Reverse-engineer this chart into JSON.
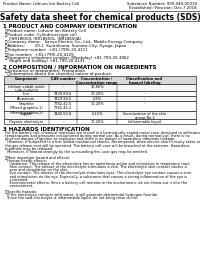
{
  "title": "Safety data sheet for chemical products (SDS)",
  "header_left": "Product Name: Lithium Ion Battery Cell",
  "header_right_line1": "Substance Number: 999-049-00010",
  "header_right_line2": "Established / Revision: Dec.7.2018",
  "section1_title": "1 PRODUCT AND COMPANY IDENTIFICATION",
  "section1_lines": [
    "・Product name: Lithium Ion Battery Cell",
    "・Product code: Cylindrical-type cell",
    "   (INR18650J, INR18650L, INR18650A)",
    "・Company name:   Sanyo Electric Co., Ltd., Mobile Energy Company",
    "・Address:        20-1  Kurankuma, Sumoto-City, Hyogo, Japan",
    "・Telephone number:  +81-(799)-20-4111",
    "・Fax number:  +81-(799)-20-4129",
    "・Emergency telephone number (Weekday) +81-799-20-3962",
    "   (Night and holiday) +81-799-20-4131"
  ],
  "section2_title": "2 COMPOSITION / INFORMATION ON INGREDIENTS",
  "section2_intro": "・Substance or preparation: Preparation",
  "section2_sub": "  ・Information about the chemical nature of product:",
  "table_headers": [
    "Component",
    "CAS number",
    "Concentration /\nConcentration range",
    "Classification and\nhazard labeling"
  ],
  "table_rows": [
    [
      "Lithium cobalt oxide\n(LiMnCoNiO2)",
      "-",
      "30-60%",
      ""
    ],
    [
      "Iron",
      "7439-89-6",
      "10-20%",
      "-"
    ],
    [
      "Aluminum",
      "7429-90-5",
      "2-5%",
      "-"
    ],
    [
      "Graphite\n(Mixed graphite-1)\n(Mixed graphite-2)",
      "7782-42-5\n7782-42-2",
      "10-20%",
      "-"
    ],
    [
      "Copper",
      "7440-50-8",
      "5-15%",
      "Sensitization of the skin\ngroup No.2"
    ],
    [
      "Organic electrolyte",
      "-",
      "10-20%",
      "Inflammable liquid"
    ]
  ],
  "section3_title": "3 HAZARDS IDENTIFICATION",
  "section3_text": [
    "For the battery cell, chemical materials are stored in a hermetically sealed metal case, designed to withstand",
    "temperatures and pressures encountered during normal use. As a result, during normal use, there is no",
    "physical danger of ignition or explosion and there is no danger of hazardous materials leakage.",
    "  However, if subjected to a fire, added mechanical shocks, decomposed, when electro-short-circuity takes use,",
    "the gas release vent will be operated. The battery cell case will be breached at the extreme. Hazardous",
    "materials may be released.",
    "  Moreover, if heated strongly by the surrounding fire, soot gas may be emitted.",
    "",
    "・Most important hazard and effects:",
    "  Human health effects:",
    "    Inhalation: The release of the electrolyte has an anesthesia action and stimulates in respiratory tract.",
    "    Skin contact: The release of the electrolyte stimulates a skin. The electrolyte skin contact causes a",
    "    sore and stimulation on the skin.",
    "    Eye contact: The release of the electrolyte stimulates eyes. The electrolyte eye contact causes a sore",
    "    and stimulation on the eye. Especially, a substance that causes a strong inflammation of the eye is",
    "    contained.",
    "    Environmental effects: Since a battery cell remains in the environment, do not throw out it into the",
    "    environment.",
    "",
    "・Specific hazards:",
    "  If the electrolyte contacts with water, it will generate detrimental hydrogen fluoride.",
    "  Since the said electrolyte is inflammable liquid, do not bring close to fire."
  ],
  "bg_color": "#ffffff",
  "text_color": "#000000"
}
